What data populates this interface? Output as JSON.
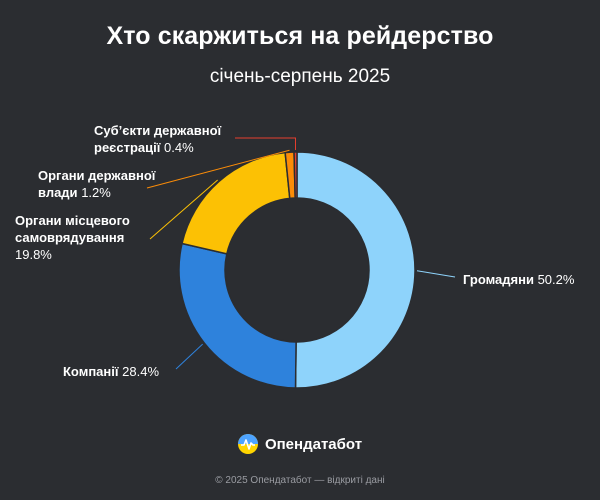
{
  "header": {
    "title": "Хто скаржиться на рейдерство",
    "subtitle": "січень-серпень 2025"
  },
  "chart_data": {
    "type": "pie",
    "donut": true,
    "title": "Хто скаржиться на рейдерство",
    "subtitle": "січень-серпень 2025",
    "unit": "%",
    "slices": [
      {
        "label": "Громадяни",
        "value": 50.2,
        "display": "50.2%",
        "color": "#8ed3fb"
      },
      {
        "label": "Компанії",
        "value": 28.4,
        "display": "28.4%",
        "color": "#2e82dc"
      },
      {
        "label": "Органи місцевого самоврядування",
        "value": 19.8,
        "display": "19.8%",
        "color": "#fcc104"
      },
      {
        "label": "Органи державної влади",
        "value": 1.2,
        "display": "1.2%",
        "color": "#fb8c08"
      },
      {
        "label": "Суб’єкти державної реєстрації",
        "value": 0.4,
        "display": "0.4%",
        "color": "#e53e2e"
      }
    ]
  },
  "labels": {
    "gromadyany": {
      "name": "Громадяни",
      "pct": "50.2%"
    },
    "kompanii": {
      "name": "Компанії",
      "pct": "28.4%"
    },
    "oms": {
      "line1": "Органи місцевого",
      "line2": "самоврядування",
      "pct": "19.8%"
    },
    "odv": {
      "line1": "Органи державної",
      "line2": "влади",
      "pct": "1.2%"
    },
    "sdr": {
      "line1": "Суб’єкти державної",
      "line2": "реєстрації",
      "pct": "0.4%"
    }
  },
  "brand": {
    "name": "Опендатабот",
    "icon": "opendatabot-logo-icon"
  },
  "footer": {
    "text": "© 2025 Опендатабот — відкриті дані"
  }
}
